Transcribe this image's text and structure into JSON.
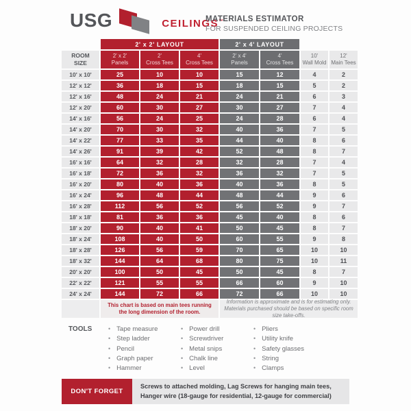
{
  "header": {
    "brand": "USG",
    "product": "CEILINGS",
    "trademark": "™",
    "title": "MATERIALS ESTIMATOR",
    "subtitle": "FOR SUSPENDED CEILING PROJECTS"
  },
  "colors": {
    "usg_red": "#b2202e",
    "usg_gray": "#6d6e71",
    "light_cell": "#e9e9ea",
    "text_dark": "#54565a"
  },
  "table": {
    "layout_bands": [
      {
        "label": "2' x 2' LAYOUT",
        "color_group": "red"
      },
      {
        "label": "2' x 4' LAYOUT",
        "color_group": "gray"
      }
    ],
    "columns": [
      {
        "line1": "ROOM",
        "line2": "SIZE",
        "group": "room"
      },
      {
        "line1": "2' x 2'",
        "line2": "Panels",
        "group": "red"
      },
      {
        "line1": "2'",
        "line2": "Cross Tees",
        "group": "red"
      },
      {
        "line1": "4'",
        "line2": "Cross Tees",
        "group": "red"
      },
      {
        "line1": "2' x 4'",
        "line2": "Panels",
        "group": "gray"
      },
      {
        "line1": "4'",
        "line2": "Cross Tees",
        "group": "gray"
      },
      {
        "line1": "10'",
        "line2": "Wall Mold",
        "group": "light"
      },
      {
        "line1": "12'",
        "line2": "Main Tees",
        "group": "light"
      }
    ],
    "value_column_groups": [
      "red",
      "red",
      "red",
      "gray",
      "gray",
      "light",
      "light"
    ],
    "rows": [
      {
        "size": "10' x 10'",
        "values": [
          25,
          10,
          10,
          15,
          12,
          4,
          2
        ]
      },
      {
        "size": "12' x 12'",
        "values": [
          36,
          18,
          15,
          18,
          15,
          5,
          2
        ]
      },
      {
        "size": "12' x 16'",
        "values": [
          48,
          24,
          21,
          24,
          21,
          6,
          3
        ]
      },
      {
        "size": "12' x 20'",
        "values": [
          60,
          30,
          27,
          30,
          27,
          7,
          4
        ]
      },
      {
        "size": "14' x 16'",
        "values": [
          56,
          24,
          25,
          24,
          28,
          6,
          4
        ]
      },
      {
        "size": "14' x 20'",
        "values": [
          70,
          30,
          32,
          40,
          36,
          7,
          5
        ]
      },
      {
        "size": "14' x 22'",
        "values": [
          77,
          33,
          35,
          44,
          40,
          8,
          6
        ]
      },
      {
        "size": "14' x 26'",
        "values": [
          91,
          39,
          42,
          52,
          48,
          8,
          7
        ]
      },
      {
        "size": "16' x 16'",
        "values": [
          64,
          32,
          28,
          32,
          28,
          7,
          4
        ]
      },
      {
        "size": "16' x 18'",
        "values": [
          72,
          36,
          32,
          36,
          32,
          7,
          5
        ]
      },
      {
        "size": "16' x 20'",
        "values": [
          80,
          40,
          36,
          40,
          36,
          8,
          5
        ]
      },
      {
        "size": "16' x 24'",
        "values": [
          96,
          48,
          44,
          48,
          44,
          9,
          6
        ]
      },
      {
        "size": "16' x 28'",
        "values": [
          112,
          56,
          52,
          56,
          52,
          9,
          7
        ]
      },
      {
        "size": "18' x 18'",
        "values": [
          81,
          36,
          36,
          45,
          40,
          8,
          6
        ]
      },
      {
        "size": "18' x 20'",
        "values": [
          90,
          40,
          41,
          50,
          45,
          8,
          7
        ]
      },
      {
        "size": "18' x 24'",
        "values": [
          108,
          40,
          50,
          60,
          55,
          9,
          8
        ]
      },
      {
        "size": "18' x 28'",
        "values": [
          126,
          56,
          59,
          70,
          65,
          10,
          10
        ]
      },
      {
        "size": "18' x 32'",
        "values": [
          144,
          64,
          68,
          80,
          75,
          10,
          11
        ]
      },
      {
        "size": "20' x 20'",
        "values": [
          100,
          50,
          45,
          50,
          45,
          8,
          7
        ]
      },
      {
        "size": "22' x 22'",
        "values": [
          121,
          55,
          55,
          66,
          60,
          9,
          10
        ]
      },
      {
        "size": "24' x 24'",
        "values": [
          144,
          72,
          66,
          72,
          66,
          10,
          10
        ]
      }
    ]
  },
  "notes": {
    "left": "This chart is based on main tees running the long dimension of the room.",
    "right": "Information is approximate and is for estimating only. Materials purchased should be based on specific room size take-offs."
  },
  "tools": {
    "label": "TOOLS",
    "columns": [
      [
        "Tape measure",
        "Step ladder",
        "Pencil",
        "Graph paper",
        "Hammer"
      ],
      [
        "Power drill",
        "Screwdriver",
        "Metal snips",
        "Chalk line",
        "Level"
      ],
      [
        "Pliers",
        "Utility knife",
        "Safety glasses",
        "String",
        "Clamps"
      ]
    ]
  },
  "dont_forget": {
    "label": "DON'T FORGET",
    "line1": "Screws to attached molding, Lag Screws for hanging main tees,",
    "line2": "Hanger wire (18-gauge for residential, 12-gauge for commercial)"
  }
}
